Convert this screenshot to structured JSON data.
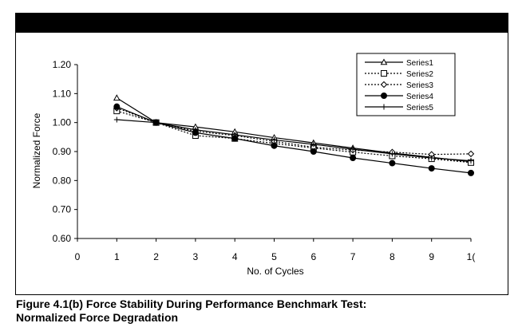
{
  "chart_data": {
    "type": "line",
    "title": "",
    "xlabel": "No. of Cycles",
    "ylabel": "Normalized Force",
    "x": [
      1,
      2,
      3,
      4,
      5,
      6,
      7,
      8,
      9,
      10
    ],
    "xlim": [
      0,
      10
    ],
    "ylim": [
      0.6,
      1.2
    ],
    "x_ticks": [
      "0",
      "1",
      "2",
      "3",
      "4",
      "5",
      "6",
      "7",
      "8",
      "9",
      "1("
    ],
    "y_ticks": [
      "0.60",
      "0.70",
      "0.80",
      "0.90",
      "1.00",
      "1.10",
      "1.20"
    ],
    "grid": false,
    "legend_position": "top-right",
    "series": [
      {
        "name": "Series1",
        "marker": "triangle-open",
        "dash": "solid",
        "values": [
          1.085,
          1.0,
          0.985,
          0.968,
          0.948,
          0.93,
          0.912,
          0.895,
          0.88,
          0.865
        ]
      },
      {
        "name": "Series2",
        "marker": "square-open",
        "dash": "dotted",
        "values": [
          1.04,
          1.0,
          0.955,
          0.945,
          0.928,
          0.912,
          0.898,
          0.885,
          0.875,
          0.862
        ]
      },
      {
        "name": "Series3",
        "marker": "diamond-open",
        "dash": "dotted",
        "values": [
          1.05,
          1.0,
          0.97,
          0.955,
          0.935,
          0.915,
          0.905,
          0.898,
          0.89,
          0.892
        ]
      },
      {
        "name": "Series4",
        "marker": "circle-filled",
        "dash": "solid",
        "values": [
          1.055,
          1.0,
          0.965,
          0.945,
          0.92,
          0.9,
          0.878,
          0.86,
          0.842,
          0.826
        ]
      },
      {
        "name": "Series5",
        "marker": "plus",
        "dash": "solid",
        "values": [
          1.01,
          1.0,
          0.975,
          0.958,
          0.94,
          0.925,
          0.908,
          0.892,
          0.878,
          0.868
        ]
      }
    ]
  },
  "caption": {
    "line1": "Figure 4.1(b)  Force Stability During Performance Benchmark Test:",
    "line2": "Normalized Force Degradation"
  },
  "colors": {
    "header_bar": "#000000",
    "line": "#000000",
    "background": "#ffffff"
  }
}
